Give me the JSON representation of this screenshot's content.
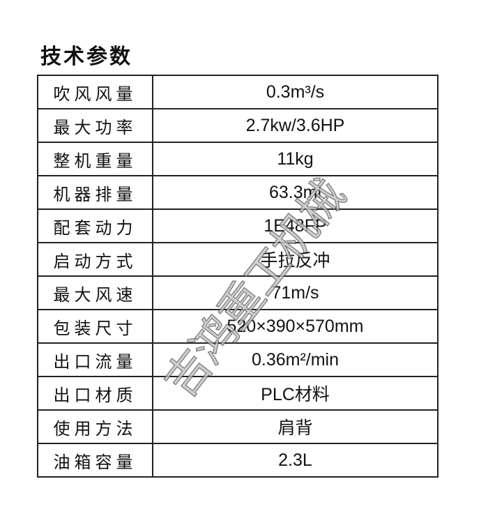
{
  "title": "技术参数",
  "rows": [
    {
      "label": "吹风风量",
      "value": "0.3m³/s"
    },
    {
      "label": "最大功率",
      "value": "2.7kw/3.6HP"
    },
    {
      "label": "整机重量",
      "value": "11kg"
    },
    {
      "label": "机器排量",
      "value": "63.3ml"
    },
    {
      "label": "配套动力",
      "value": "1E48FP"
    },
    {
      "label": "启动方式",
      "value": "手拉反冲"
    },
    {
      "label": "最大风速",
      "value": "71m/s"
    },
    {
      "label": "包装尺寸",
      "value": "520×390×570mm"
    },
    {
      "label": "出口流量",
      "value": "0.36m²/min"
    },
    {
      "label": "出口材质",
      "value": "PLC材料"
    },
    {
      "label": "使用方法",
      "value": "肩背"
    },
    {
      "label": "油箱容量",
      "value": "2.3L"
    }
  ],
  "watermark": "吉鸿重工机械"
}
